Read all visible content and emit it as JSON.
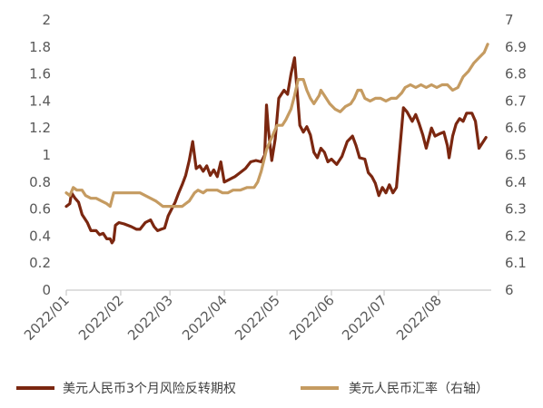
{
  "chart_data": {
    "type": "line",
    "xlim": [
      "2022-01-01",
      "2022-08-31"
    ],
    "x_ticks": [
      "2022/01",
      "2022/02",
      "2022/03",
      "2022/04",
      "2022/05",
      "2022/06",
      "2022/07",
      "2022/08"
    ],
    "y_left": {
      "ylim": [
        0,
        2
      ],
      "ticks": [
        "0",
        "0.2",
        "0.4",
        "0.6",
        "0.8",
        "1",
        "1.2",
        "1.4",
        "1.6",
        "1.8",
        "2"
      ]
    },
    "y_right": {
      "ylim": [
        6,
        7
      ],
      "ticks": [
        "6",
        "6.1",
        "6.2",
        "6.3",
        "6.4",
        "6.5",
        "6.6",
        "6.7",
        "6.8",
        "6.9",
        "7"
      ]
    },
    "grid": false,
    "legend_position": "bottom",
    "series": [
      {
        "name": "美元人民币3个月风险反转期权",
        "axis": "left",
        "color": "#7B2710",
        "points": [
          [
            "2022-01-01",
            0.62
          ],
          [
            "2022-01-03",
            0.64
          ],
          [
            "2022-01-04",
            0.72
          ],
          [
            "2022-01-06",
            0.68
          ],
          [
            "2022-01-08",
            0.65
          ],
          [
            "2022-01-10",
            0.56
          ],
          [
            "2022-01-13",
            0.5
          ],
          [
            "2022-01-15",
            0.44
          ],
          [
            "2022-01-18",
            0.44
          ],
          [
            "2022-01-20",
            0.41
          ],
          [
            "2022-01-22",
            0.42
          ],
          [
            "2022-01-24",
            0.38
          ],
          [
            "2022-01-26",
            0.38
          ],
          [
            "2022-01-27",
            0.35
          ],
          [
            "2022-01-28",
            0.37
          ],
          [
            "2022-01-29",
            0.48
          ],
          [
            "2022-01-31",
            0.5
          ],
          [
            "2022-02-03",
            0.49
          ],
          [
            "2022-02-05",
            0.48
          ],
          [
            "2022-02-07",
            0.47
          ],
          [
            "2022-02-10",
            0.45
          ],
          [
            "2022-02-12",
            0.45
          ],
          [
            "2022-02-15",
            0.5
          ],
          [
            "2022-02-18",
            0.52
          ],
          [
            "2022-02-20",
            0.47
          ],
          [
            "2022-02-22",
            0.44
          ],
          [
            "2022-02-24",
            0.45
          ],
          [
            "2022-02-26",
            0.46
          ],
          [
            "2022-02-28",
            0.55
          ],
          [
            "2022-03-02",
            0.6
          ],
          [
            "2022-03-04",
            0.65
          ],
          [
            "2022-03-06",
            0.72
          ],
          [
            "2022-03-08",
            0.78
          ],
          [
            "2022-03-10",
            0.85
          ],
          [
            "2022-03-12",
            0.96
          ],
          [
            "2022-03-14",
            1.1
          ],
          [
            "2022-03-16",
            0.9
          ],
          [
            "2022-03-18",
            0.92
          ],
          [
            "2022-03-20",
            0.88
          ],
          [
            "2022-03-22",
            0.92
          ],
          [
            "2022-03-24",
            0.85
          ],
          [
            "2022-03-26",
            0.89
          ],
          [
            "2022-03-28",
            0.84
          ],
          [
            "2022-03-30",
            0.95
          ],
          [
            "2022-04-01",
            0.8
          ],
          [
            "2022-04-04",
            0.82
          ],
          [
            "2022-04-07",
            0.84
          ],
          [
            "2022-04-10",
            0.87
          ],
          [
            "2022-04-13",
            0.9
          ],
          [
            "2022-04-16",
            0.95
          ],
          [
            "2022-04-19",
            0.96
          ],
          [
            "2022-04-22",
            0.95
          ],
          [
            "2022-04-24",
            1.0
          ],
          [
            "2022-04-25",
            1.37
          ],
          [
            "2022-04-26",
            1.2
          ],
          [
            "2022-04-28",
            0.96
          ],
          [
            "2022-04-30",
            1.12
          ],
          [
            "2022-05-02",
            1.42
          ],
          [
            "2022-05-05",
            1.48
          ],
          [
            "2022-05-07",
            1.45
          ],
          [
            "2022-05-09",
            1.6
          ],
          [
            "2022-05-11",
            1.72
          ],
          [
            "2022-05-12",
            1.55
          ],
          [
            "2022-05-14",
            1.22
          ],
          [
            "2022-05-16",
            1.17
          ],
          [
            "2022-05-18",
            1.21
          ],
          [
            "2022-05-20",
            1.15
          ],
          [
            "2022-05-22",
            1.02
          ],
          [
            "2022-05-24",
            0.98
          ],
          [
            "2022-05-26",
            1.05
          ],
          [
            "2022-05-28",
            1.02
          ],
          [
            "2022-05-30",
            0.95
          ],
          [
            "2022-06-01",
            0.97
          ],
          [
            "2022-06-04",
            0.93
          ],
          [
            "2022-06-07",
            0.99
          ],
          [
            "2022-06-10",
            1.1
          ],
          [
            "2022-06-13",
            1.14
          ],
          [
            "2022-06-15",
            1.07
          ],
          [
            "2022-06-17",
            0.98
          ],
          [
            "2022-06-20",
            0.97
          ],
          [
            "2022-06-22",
            0.87
          ],
          [
            "2022-06-24",
            0.84
          ],
          [
            "2022-06-26",
            0.79
          ],
          [
            "2022-06-28",
            0.7
          ],
          [
            "2022-06-30",
            0.76
          ],
          [
            "2022-07-02",
            0.72
          ],
          [
            "2022-07-04",
            0.78
          ],
          [
            "2022-07-06",
            0.72
          ],
          [
            "2022-07-08",
            0.76
          ],
          [
            "2022-07-10",
            1.05
          ],
          [
            "2022-07-12",
            1.35
          ],
          [
            "2022-07-14",
            1.32
          ],
          [
            "2022-07-17",
            1.25
          ],
          [
            "2022-07-19",
            1.3
          ],
          [
            "2022-07-21",
            1.23
          ],
          [
            "2022-07-23",
            1.15
          ],
          [
            "2022-07-25",
            1.05
          ],
          [
            "2022-07-28",
            1.2
          ],
          [
            "2022-07-30",
            1.14
          ],
          [
            "2022-08-02",
            1.16
          ],
          [
            "2022-08-04",
            1.17
          ],
          [
            "2022-08-06",
            1.07
          ],
          [
            "2022-08-07",
            0.98
          ],
          [
            "2022-08-09",
            1.14
          ],
          [
            "2022-08-11",
            1.23
          ],
          [
            "2022-08-13",
            1.27
          ],
          [
            "2022-08-15",
            1.25
          ],
          [
            "2022-08-17",
            1.31
          ],
          [
            "2022-08-20",
            1.31
          ],
          [
            "2022-08-22",
            1.25
          ],
          [
            "2022-08-24",
            1.05
          ],
          [
            "2022-08-26",
            1.09
          ],
          [
            "2022-08-28",
            1.13
          ]
        ]
      },
      {
        "name": "美元人民币汇率（右轴）",
        "axis": "right",
        "color": "#C59B61",
        "points": [
          [
            "2022-01-01",
            6.36
          ],
          [
            "2022-01-03",
            6.35
          ],
          [
            "2022-01-05",
            6.38
          ],
          [
            "2022-01-07",
            6.37
          ],
          [
            "2022-01-10",
            6.37
          ],
          [
            "2022-01-12",
            6.35
          ],
          [
            "2022-01-15",
            6.34
          ],
          [
            "2022-01-18",
            6.34
          ],
          [
            "2022-01-21",
            6.33
          ],
          [
            "2022-01-24",
            6.32
          ],
          [
            "2022-01-26",
            6.31
          ],
          [
            "2022-01-28",
            6.36
          ],
          [
            "2022-01-31",
            6.36
          ],
          [
            "2022-02-04",
            6.36
          ],
          [
            "2022-02-08",
            6.36
          ],
          [
            "2022-02-12",
            6.36
          ],
          [
            "2022-02-15",
            6.35
          ],
          [
            "2022-02-18",
            6.34
          ],
          [
            "2022-02-21",
            6.33
          ],
          [
            "2022-02-23",
            6.32
          ],
          [
            "2022-02-25",
            6.31
          ],
          [
            "2022-02-28",
            6.31
          ],
          [
            "2022-03-03",
            6.31
          ],
          [
            "2022-03-06",
            6.31
          ],
          [
            "2022-03-08",
            6.31
          ],
          [
            "2022-03-10",
            6.32
          ],
          [
            "2022-03-12",
            6.33
          ],
          [
            "2022-03-15",
            6.36
          ],
          [
            "2022-03-17",
            6.37
          ],
          [
            "2022-03-20",
            6.36
          ],
          [
            "2022-03-22",
            6.37
          ],
          [
            "2022-03-25",
            6.37
          ],
          [
            "2022-03-28",
            6.37
          ],
          [
            "2022-03-31",
            6.36
          ],
          [
            "2022-04-03",
            6.36
          ],
          [
            "2022-04-06",
            6.37
          ],
          [
            "2022-04-10",
            6.37
          ],
          [
            "2022-04-14",
            6.38
          ],
          [
            "2022-04-18",
            6.38
          ],
          [
            "2022-04-20",
            6.4
          ],
          [
            "2022-04-22",
            6.44
          ],
          [
            "2022-04-25",
            6.52
          ],
          [
            "2022-04-27",
            6.55
          ],
          [
            "2022-04-29",
            6.58
          ],
          [
            "2022-05-01",
            6.61
          ],
          [
            "2022-05-04",
            6.61
          ],
          [
            "2022-05-06",
            6.63
          ],
          [
            "2022-05-09",
            6.67
          ],
          [
            "2022-05-11",
            6.72
          ],
          [
            "2022-05-13",
            6.78
          ],
          [
            "2022-05-16",
            6.78
          ],
          [
            "2022-05-18",
            6.74
          ],
          [
            "2022-05-20",
            6.71
          ],
          [
            "2022-05-22",
            6.69
          ],
          [
            "2022-05-24",
            6.71
          ],
          [
            "2022-05-25",
            6.72
          ],
          [
            "2022-05-26",
            6.74
          ],
          [
            "2022-05-28",
            6.72
          ],
          [
            "2022-05-31",
            6.69
          ],
          [
            "2022-06-03",
            6.67
          ],
          [
            "2022-06-06",
            6.66
          ],
          [
            "2022-06-09",
            6.68
          ],
          [
            "2022-06-12",
            6.69
          ],
          [
            "2022-06-14",
            6.71
          ],
          [
            "2022-06-16",
            6.74
          ],
          [
            "2022-06-18",
            6.74
          ],
          [
            "2022-06-20",
            6.71
          ],
          [
            "2022-06-23",
            6.7
          ],
          [
            "2022-06-26",
            6.71
          ],
          [
            "2022-06-29",
            6.71
          ],
          [
            "2022-07-02",
            6.7
          ],
          [
            "2022-07-05",
            6.71
          ],
          [
            "2022-07-08",
            6.71
          ],
          [
            "2022-07-11",
            6.73
          ],
          [
            "2022-07-13",
            6.75
          ],
          [
            "2022-07-16",
            6.76
          ],
          [
            "2022-07-19",
            6.75
          ],
          [
            "2022-07-22",
            6.76
          ],
          [
            "2022-07-25",
            6.75
          ],
          [
            "2022-07-28",
            6.76
          ],
          [
            "2022-07-31",
            6.75
          ],
          [
            "2022-08-03",
            6.76
          ],
          [
            "2022-08-06",
            6.76
          ],
          [
            "2022-08-09",
            6.74
          ],
          [
            "2022-08-12",
            6.75
          ],
          [
            "2022-08-15",
            6.79
          ],
          [
            "2022-08-18",
            6.81
          ],
          [
            "2022-08-21",
            6.84
          ],
          [
            "2022-08-24",
            6.86
          ],
          [
            "2022-08-27",
            6.88
          ],
          [
            "2022-08-29",
            6.91
          ]
        ]
      }
    ]
  }
}
